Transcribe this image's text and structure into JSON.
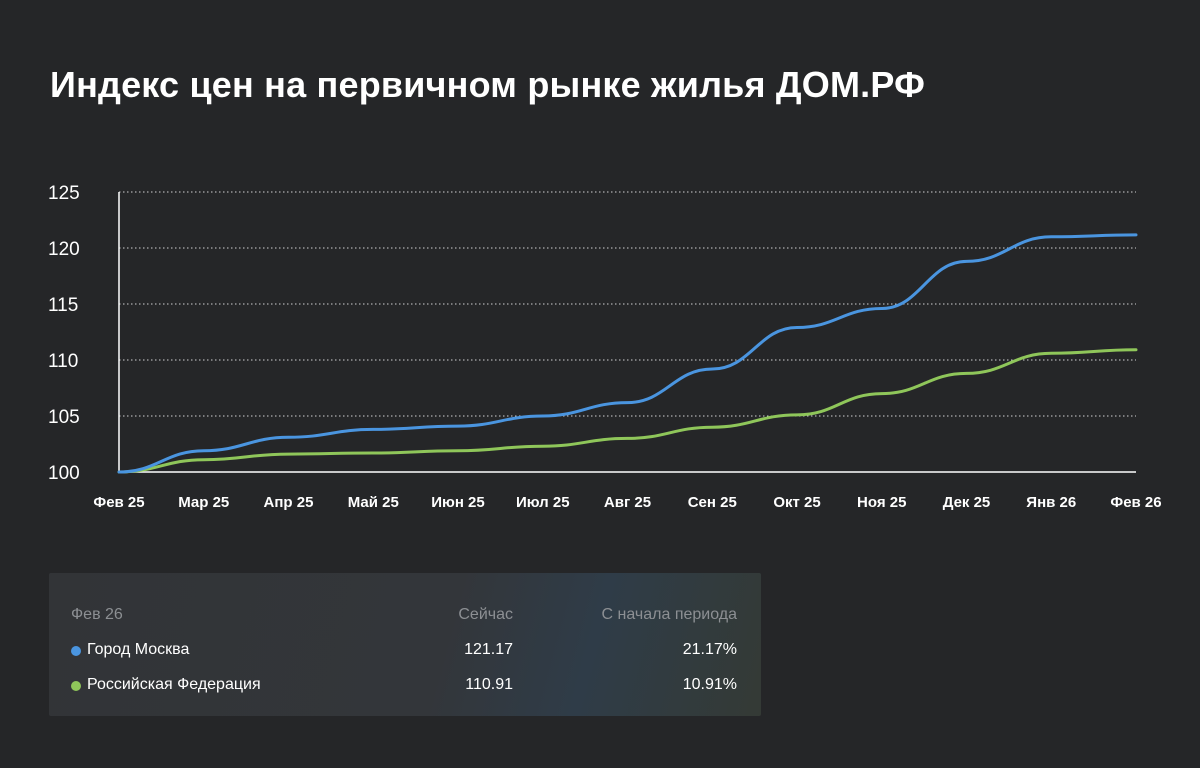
{
  "title": "Индекс цен на первичном рынке жилья ДОМ.РФ",
  "colors": {
    "background": "#252628",
    "moscow": "#4a95e0",
    "russia": "#8fc65a",
    "grid": "#cfd0d2"
  },
  "chart_data": {
    "type": "line",
    "title": "Индекс цен на первичном рынке жилья ДОМ.РФ",
    "xlabel": "",
    "ylabel": "",
    "categories": [
      "Фев 25",
      "Мар 25",
      "Апр 25",
      "Май 25",
      "Июн 25",
      "Июл 25",
      "Авг 25",
      "Сен 25",
      "Окт 25",
      "Ноя 25",
      "Дек 25",
      "Янв 26",
      "Фев 26"
    ],
    "yticks": [
      100,
      105,
      110,
      115,
      120,
      125
    ],
    "ylim": [
      100,
      125
    ],
    "grid": true,
    "series": [
      {
        "name": "Город Москва",
        "color": "#4a95e0",
        "values": [
          100.0,
          101.9,
          103.1,
          103.8,
          104.1,
          105.0,
          106.2,
          109.2,
          112.9,
          114.6,
          118.8,
          121.0,
          121.17
        ]
      },
      {
        "name": "Российская Федерация",
        "color": "#8fc65a",
        "values": [
          100.0,
          101.1,
          101.6,
          101.7,
          101.9,
          102.3,
          103.0,
          104.0,
          105.1,
          107.0,
          108.8,
          110.6,
          110.91
        ]
      }
    ]
  },
  "legend": {
    "period": "Фев 26",
    "col_now": "Сейчас",
    "col_since": "С начала периода",
    "rows": [
      {
        "name": "Город Москва",
        "now": "121.17",
        "since": "21.17%",
        "color": "#4a95e0"
      },
      {
        "name": "Российская Федерация",
        "now": "110.91",
        "since": "10.91%",
        "color": "#8fc65a"
      }
    ]
  }
}
